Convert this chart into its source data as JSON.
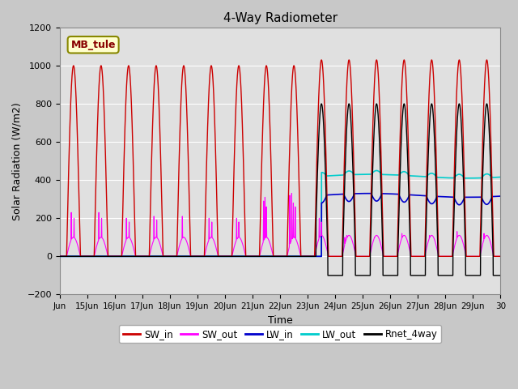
{
  "title": "4-Way Radiometer",
  "xlabel": "Time",
  "ylabel": "Solar Radiation (W/m2)",
  "ylim": [
    -200,
    1200
  ],
  "xlim_days": [
    14,
    30
  ],
  "x_ticks": [
    14,
    15,
    16,
    17,
    18,
    19,
    20,
    21,
    22,
    23,
    24,
    25,
    26,
    27,
    28,
    29,
    30
  ],
  "x_tick_labels": [
    "Jun",
    "15Jun",
    "16Jun",
    "17Jun",
    "18Jun",
    "19Jun",
    "20Jun",
    "21Jun",
    "22Jun",
    "23Jun",
    "24Jun",
    "25Jun",
    "26Jun",
    "27Jun",
    "28Jun",
    "29Jun",
    "30"
  ],
  "fig_bg_color": "#c8c8c8",
  "plot_bg_color": "#e0e0e0",
  "grid_color": "white",
  "station_label": "MB_tule",
  "legend_entries": [
    "SW_in",
    "SW_out",
    "LW_in",
    "LW_out",
    "Rnet_4way"
  ],
  "legend_colors": [
    "#cc0000",
    "#ff00ff",
    "#0000cc",
    "#00cccc",
    "#000000"
  ],
  "sw_in_color": "#cc0000",
  "sw_out_color": "#ff00ff",
  "lw_in_color": "#0000cc",
  "lw_out_color": "#00cccc",
  "rnet_color": "#000000",
  "yticks": [
    -200,
    0,
    200,
    400,
    600,
    800,
    1000,
    1200
  ]
}
